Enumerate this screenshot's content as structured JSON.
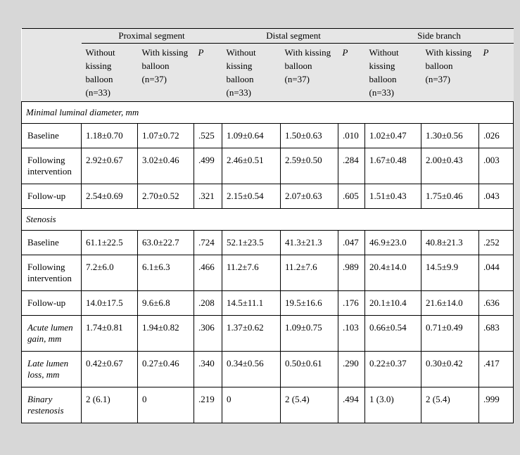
{
  "page": {
    "background_color": "#d7d7d7",
    "header_background_color": "#e6e6e6",
    "border_color": "#000000"
  },
  "table": {
    "groups": [
      {
        "label": "Proximal segment"
      },
      {
        "label": "Distal segment"
      },
      {
        "label": "Side branch"
      }
    ],
    "subheaders": [
      "Without kissing balloon (n=33)",
      "With kissing balloon (n=37)",
      "P"
    ],
    "rows": [
      {
        "type": "section",
        "label": "Minimal luminal diameter, mm"
      },
      {
        "type": "data",
        "label": "Baseline",
        "italic": false,
        "values": [
          "1.18±0.70",
          "1.07±0.72",
          ".525",
          "1.09±0.64",
          "1.50±0.63",
          ".010",
          "1.02±0.47",
          "1.30±0.56",
          ".026"
        ]
      },
      {
        "type": "data",
        "label": "Following intervention",
        "italic": false,
        "values": [
          "2.92±0.67",
          "3.02±0.46",
          ".499",
          "2.46±0.51",
          "2.59±0.50",
          ".284",
          "1.67±0.48",
          "2.00±0.43",
          ".003"
        ]
      },
      {
        "type": "data",
        "label": "Follow-up",
        "italic": false,
        "values": [
          "2.54±0.69",
          "2.70±0.52",
          ".321",
          "2.15±0.54",
          "2.07±0.63",
          ".605",
          "1.51±0.43",
          "1.75±0.46",
          ".043"
        ]
      },
      {
        "type": "section",
        "label": "Stenosis"
      },
      {
        "type": "data",
        "label": "Baseline",
        "italic": false,
        "values": [
          "61.1±22.5",
          "63.0±22.7",
          ".724",
          "52.1±23.5",
          "41.3±21.3",
          ".047",
          "46.9±23.0",
          "40.8±21.3",
          ".252"
        ]
      },
      {
        "type": "data",
        "label": "Following intervention",
        "italic": false,
        "values": [
          "7.2±6.0",
          "6.1±6.3",
          ".466",
          "11.2±7.6",
          "11.2±7.6",
          ".989",
          "20.4±14.0",
          "14.5±9.9",
          ".044"
        ]
      },
      {
        "type": "data",
        "label": "Follow-up",
        "italic": false,
        "values": [
          "14.0±17.5",
          "9.6±6.8",
          ".208",
          "14.5±11.1",
          "19.5±16.6",
          ".176",
          "20.1±10.4",
          "21.6±14.0",
          ".636"
        ]
      },
      {
        "type": "data",
        "label": "Acute lumen gain, mm",
        "italic": true,
        "values": [
          "1.74±0.81",
          "1.94±0.82",
          ".306",
          "1.37±0.62",
          "1.09±0.75",
          ".103",
          "0.66±0.54",
          "0.71±0.49",
          ".683"
        ]
      },
      {
        "type": "data",
        "label": "Late lumen loss, mm",
        "italic": true,
        "values": [
          "0.42±0.67",
          "0.27±0.46",
          ".340",
          "0.34±0.56",
          "0.50±0.61",
          ".290",
          "0.22±0.37",
          "0.30±0.42",
          ".417"
        ]
      },
      {
        "type": "data",
        "label": "Binary restenosis",
        "italic": true,
        "values": [
          "2 (6.1)",
          "0",
          ".219",
          "0",
          "2 (5.4)",
          ".494",
          "1 (3.0)",
          "2 (5.4)",
          ".999"
        ]
      }
    ]
  }
}
